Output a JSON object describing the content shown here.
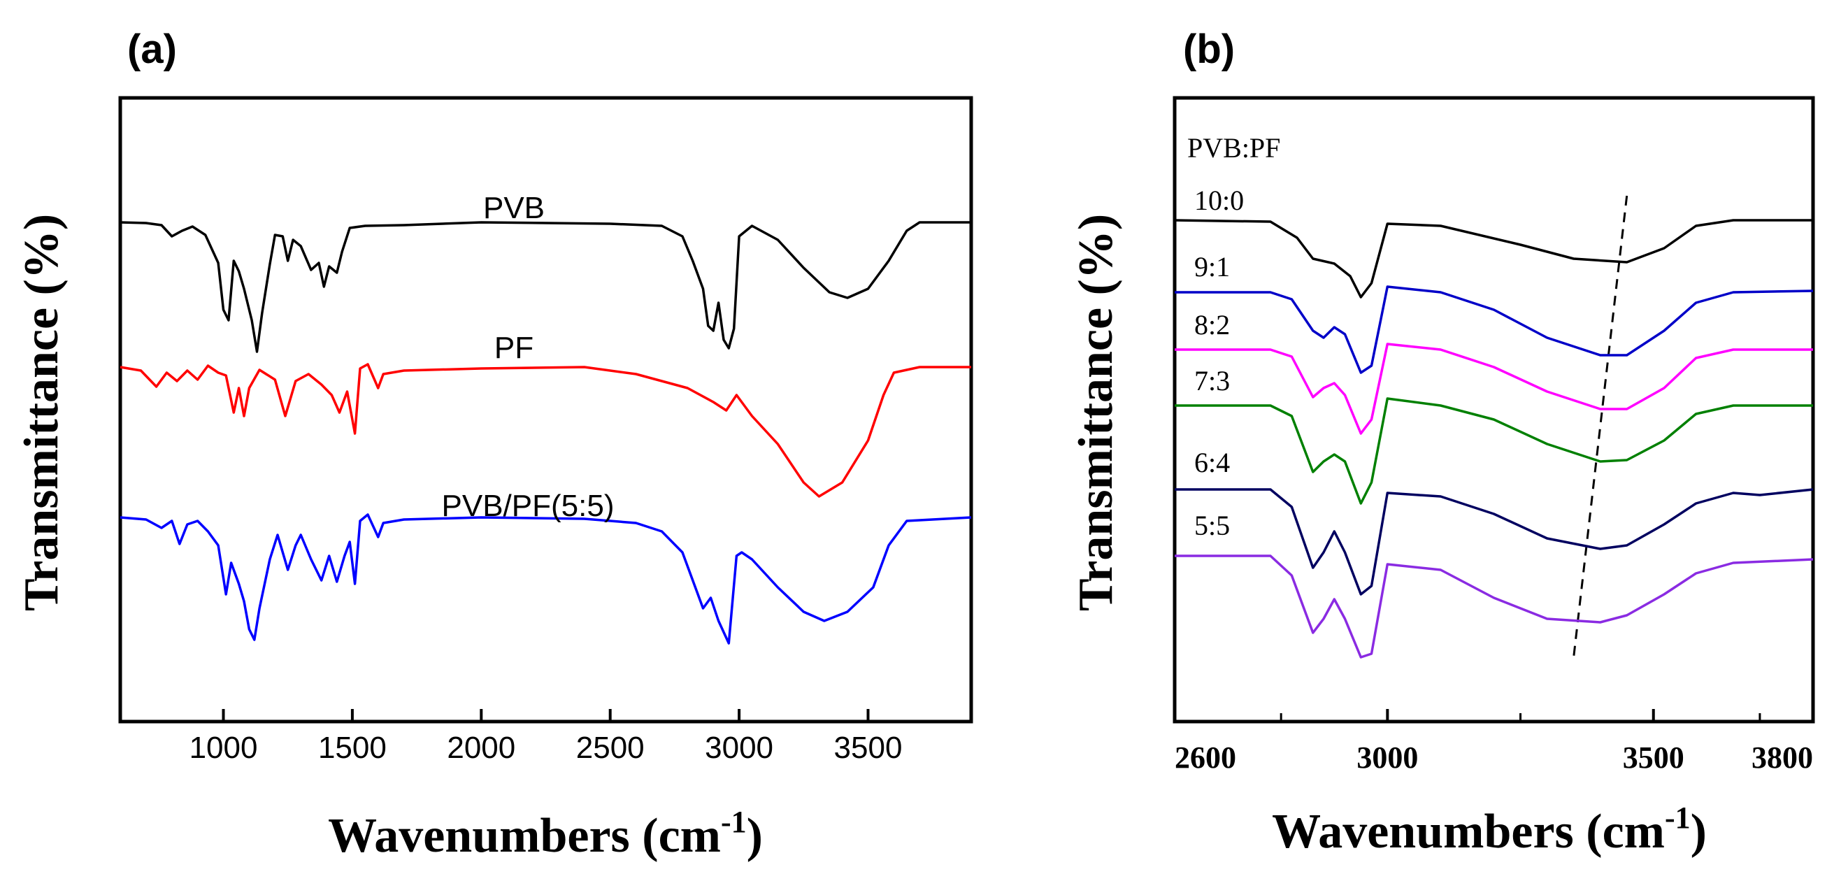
{
  "chart_data": [
    {
      "panel": "(a)",
      "type": "line",
      "xlabel": "Wavenumbers (cm",
      "xlabel_sup": "-1",
      "xlabel_close": ")",
      "ylabel": "Transmittance (%)",
      "xlim": [
        600,
        3900
      ],
      "ticks": [
        1000,
        1500,
        2000,
        2500,
        3000,
        3500
      ],
      "tick_labels": [
        "1000",
        "1500",
        "2000",
        "2500",
        "3000",
        "3500"
      ],
      "y_ticks_shown": false,
      "series": [
        {
          "name": "PVB",
          "color": "#000000",
          "offset": 0,
          "points": [
            [
              600,
              0.0
            ],
            [
              700,
              1
            ],
            [
              760,
              4
            ],
            [
              800,
              20
            ],
            [
              840,
              12
            ],
            [
              880,
              6
            ],
            [
              930,
              18
            ],
            [
              980,
              58
            ],
            [
              1000,
              125
            ],
            [
              1020,
              140
            ],
            [
              1040,
              55
            ],
            [
              1060,
              70
            ],
            [
              1080,
              95
            ],
            [
              1110,
              140
            ],
            [
              1130,
              185
            ],
            [
              1150,
              130
            ],
            [
              1180,
              60
            ],
            [
              1200,
              18
            ],
            [
              1230,
              20
            ],
            [
              1250,
              55
            ],
            [
              1270,
              25
            ],
            [
              1300,
              34
            ],
            [
              1340,
              68
            ],
            [
              1370,
              58
            ],
            [
              1390,
              92
            ],
            [
              1410,
              63
            ],
            [
              1440,
              72
            ],
            [
              1460,
              42
            ],
            [
              1490,
              8
            ],
            [
              1550,
              5
            ],
            [
              1700,
              4
            ],
            [
              2000,
              0
            ],
            [
              2500,
              2
            ],
            [
              2700,
              5
            ],
            [
              2780,
              20
            ],
            [
              2820,
              55
            ],
            [
              2860,
              95
            ],
            [
              2880,
              148
            ],
            [
              2900,
              155
            ],
            [
              2920,
              115
            ],
            [
              2940,
              168
            ],
            [
              2960,
              180
            ],
            [
              2980,
              152
            ],
            [
              3000,
              20
            ],
            [
              3050,
              5
            ],
            [
              3150,
              25
            ],
            [
              3250,
              65
            ],
            [
              3350,
              100
            ],
            [
              3420,
              108
            ],
            [
              3500,
              95
            ],
            [
              3580,
              55
            ],
            [
              3650,
              12
            ],
            [
              3700,
              0
            ],
            [
              3900,
              0
            ]
          ]
        },
        {
          "name": "PF",
          "color": "#ff0000",
          "offset": 255,
          "points": [
            [
              600,
              0
            ],
            [
              680,
              5
            ],
            [
              740,
              28
            ],
            [
              780,
              8
            ],
            [
              820,
              20
            ],
            [
              860,
              5
            ],
            [
              900,
              18
            ],
            [
              940,
              -2
            ],
            [
              980,
              8
            ],
            [
              1010,
              12
            ],
            [
              1040,
              65
            ],
            [
              1060,
              30
            ],
            [
              1080,
              70
            ],
            [
              1100,
              30
            ],
            [
              1140,
              4
            ],
            [
              1200,
              18
            ],
            [
              1240,
              70
            ],
            [
              1280,
              20
            ],
            [
              1330,
              10
            ],
            [
              1380,
              25
            ],
            [
              1420,
              40
            ],
            [
              1450,
              65
            ],
            [
              1480,
              35
            ],
            [
              1510,
              95
            ],
            [
              1530,
              2
            ],
            [
              1560,
              -4
            ],
            [
              1600,
              30
            ],
            [
              1620,
              10
            ],
            [
              1700,
              5
            ],
            [
              2000,
              2
            ],
            [
              2400,
              0
            ],
            [
              2600,
              10
            ],
            [
              2800,
              30
            ],
            [
              2900,
              50
            ],
            [
              2950,
              62
            ],
            [
              2990,
              40
            ],
            [
              3050,
              70
            ],
            [
              3150,
              110
            ],
            [
              3250,
              165
            ],
            [
              3310,
              185
            ],
            [
              3400,
              165
            ],
            [
              3500,
              105
            ],
            [
              3560,
              40
            ],
            [
              3600,
              8
            ],
            [
              3700,
              0
            ],
            [
              3900,
              0
            ]
          ]
        },
        {
          "name": "PVB/PF(5:5)",
          "color": "#0000ff",
          "offset": 505,
          "points": [
            [
              600,
              0
            ],
            [
              700,
              3
            ],
            [
              760,
              15
            ],
            [
              800,
              5
            ],
            [
              830,
              38
            ],
            [
              860,
              10
            ],
            [
              900,
              5
            ],
            [
              940,
              20
            ],
            [
              980,
              40
            ],
            [
              1010,
              110
            ],
            [
              1030,
              65
            ],
            [
              1060,
              95
            ],
            [
              1080,
              120
            ],
            [
              1100,
              160
            ],
            [
              1120,
              175
            ],
            [
              1140,
              130
            ],
            [
              1180,
              60
            ],
            [
              1210,
              25
            ],
            [
              1250,
              75
            ],
            [
              1280,
              40
            ],
            [
              1300,
              25
            ],
            [
              1340,
              60
            ],
            [
              1380,
              90
            ],
            [
              1410,
              55
            ],
            [
              1440,
              92
            ],
            [
              1470,
              55
            ],
            [
              1490,
              35
            ],
            [
              1510,
              95
            ],
            [
              1530,
              5
            ],
            [
              1560,
              -4
            ],
            [
              1600,
              28
            ],
            [
              1620,
              8
            ],
            [
              1700,
              3
            ],
            [
              2000,
              0
            ],
            [
              2400,
              2
            ],
            [
              2600,
              8
            ],
            [
              2700,
              20
            ],
            [
              2780,
              50
            ],
            [
              2860,
              130
            ],
            [
              2890,
              115
            ],
            [
              2920,
              148
            ],
            [
              2960,
              180
            ],
            [
              2990,
              55
            ],
            [
              3010,
              50
            ],
            [
              3050,
              60
            ],
            [
              3150,
              100
            ],
            [
              3250,
              135
            ],
            [
              3330,
              148
            ],
            [
              3420,
              135
            ],
            [
              3520,
              100
            ],
            [
              3580,
              40
            ],
            [
              3650,
              5
            ],
            [
              3900,
              0
            ]
          ]
        }
      ]
    },
    {
      "panel": "(b)",
      "type": "line",
      "xlabel": "Wavenumbers (cm",
      "xlabel_sup": "-1",
      "xlabel_close": ")",
      "ylabel": "Transmittance (%)",
      "xlim": [
        2600,
        3800
      ],
      "ticks": [
        2600,
        3000,
        3500,
        3800
      ],
      "tick_labels": [
        "2600",
        "3000",
        "3500",
        "3800"
      ],
      "legend_title": "PVB:PF",
      "dashed_guide": {
        "from": [
          3450,
          -20
        ],
        "to": [
          3350,
          640
        ]
      },
      "series": [
        {
          "name": "10:0",
          "color": "#000000",
          "offset": 0,
          "points": [
            [
              2600,
              0
            ],
            [
              2780,
              2
            ],
            [
              2830,
              25
            ],
            [
              2860,
              55
            ],
            [
              2900,
              62
            ],
            [
              2930,
              80
            ],
            [
              2950,
              110
            ],
            [
              2970,
              90
            ],
            [
              3000,
              5
            ],
            [
              3100,
              8
            ],
            [
              3250,
              35
            ],
            [
              3350,
              55
            ],
            [
              3450,
              60
            ],
            [
              3520,
              40
            ],
            [
              3580,
              8
            ],
            [
              3650,
              0
            ],
            [
              3800,
              0
            ]
          ]
        },
        {
          "name": "9:1",
          "color": "#0000c8",
          "offset": 130,
          "points": [
            [
              2600,
              0
            ],
            [
              2780,
              0
            ],
            [
              2820,
              10
            ],
            [
              2860,
              55
            ],
            [
              2880,
              65
            ],
            [
              2900,
              50
            ],
            [
              2920,
              60
            ],
            [
              2950,
              115
            ],
            [
              2970,
              105
            ],
            [
              3000,
              -8
            ],
            [
              3100,
              0
            ],
            [
              3200,
              25
            ],
            [
              3300,
              65
            ],
            [
              3400,
              90
            ],
            [
              3450,
              90
            ],
            [
              3520,
              55
            ],
            [
              3580,
              15
            ],
            [
              3650,
              0
            ],
            [
              3800,
              -2
            ]
          ]
        },
        {
          "name": "8:2",
          "color": "#ff00ff",
          "offset": 207,
          "points": [
            [
              2600,
              0
            ],
            [
              2780,
              0
            ],
            [
              2820,
              10
            ],
            [
              2860,
              68
            ],
            [
              2880,
              55
            ],
            [
              2900,
              48
            ],
            [
              2920,
              65
            ],
            [
              2950,
              120
            ],
            [
              2970,
              100
            ],
            [
              3000,
              -8
            ],
            [
              3100,
              0
            ],
            [
              3200,
              25
            ],
            [
              3300,
              60
            ],
            [
              3400,
              85
            ],
            [
              3450,
              85
            ],
            [
              3520,
              55
            ],
            [
              3580,
              12
            ],
            [
              3650,
              0
            ],
            [
              3800,
              0
            ]
          ]
        },
        {
          "name": "7:3",
          "color": "#008000",
          "offset": 280,
          "points": [
            [
              2600,
              0
            ],
            [
              2780,
              0
            ],
            [
              2820,
              15
            ],
            [
              2860,
              95
            ],
            [
              2880,
              80
            ],
            [
              2900,
              70
            ],
            [
              2920,
              80
            ],
            [
              2950,
              140
            ],
            [
              2970,
              110
            ],
            [
              3000,
              -10
            ],
            [
              3100,
              0
            ],
            [
              3200,
              20
            ],
            [
              3300,
              55
            ],
            [
              3400,
              80
            ],
            [
              3450,
              78
            ],
            [
              3520,
              50
            ],
            [
              3580,
              12
            ],
            [
              3650,
              0
            ],
            [
              3800,
              0
            ]
          ]
        },
        {
          "name": "6:4",
          "color": "#000060",
          "offset": 400,
          "points": [
            [
              2600,
              0
            ],
            [
              2780,
              0
            ],
            [
              2820,
              25
            ],
            [
              2860,
              112
            ],
            [
              2880,
              90
            ],
            [
              2900,
              60
            ],
            [
              2920,
              90
            ],
            [
              2950,
              150
            ],
            [
              2970,
              138
            ],
            [
              3000,
              5
            ],
            [
              3100,
              10
            ],
            [
              3200,
              35
            ],
            [
              3300,
              70
            ],
            [
              3400,
              85
            ],
            [
              3450,
              80
            ],
            [
              3520,
              50
            ],
            [
              3580,
              20
            ],
            [
              3650,
              5
            ],
            [
              3700,
              8
            ],
            [
              3800,
              0
            ]
          ]
        },
        {
          "name": "5:5",
          "color": "#8a2be2",
          "offset": 480,
          "points": [
            [
              2600,
              0
            ],
            [
              2780,
              0
            ],
            [
              2820,
              28
            ],
            [
              2860,
              110
            ],
            [
              2880,
              90
            ],
            [
              2900,
              62
            ],
            [
              2920,
              90
            ],
            [
              2950,
              145
            ],
            [
              2970,
              140
            ],
            [
              3000,
              12
            ],
            [
              3100,
              20
            ],
            [
              3200,
              60
            ],
            [
              3300,
              90
            ],
            [
              3400,
              95
            ],
            [
              3450,
              85
            ],
            [
              3520,
              55
            ],
            [
              3580,
              25
            ],
            [
              3650,
              10
            ],
            [
              3800,
              5
            ]
          ]
        }
      ]
    }
  ]
}
